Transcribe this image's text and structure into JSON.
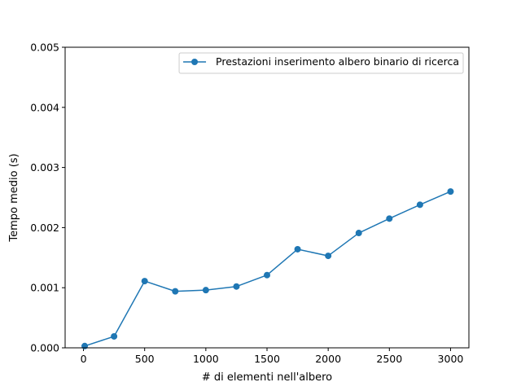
{
  "chart_data": {
    "type": "line",
    "title": "",
    "xlabel": "# di elementi nell'albero",
    "ylabel": "Tempo medio (s)",
    "xlim": [
      -150,
      3150
    ],
    "ylim": [
      0,
      0.005
    ],
    "x_ticks": [
      0,
      500,
      1000,
      1500,
      2000,
      2500,
      3000
    ],
    "x_tick_labels": [
      "0",
      "500",
      "1000",
      "1500",
      "2000",
      "2500",
      "3000"
    ],
    "y_ticks": [
      0,
      0.001,
      0.002,
      0.003,
      0.004,
      0.005
    ],
    "y_tick_labels": [
      "0.000",
      "0.001",
      "0.002",
      "0.003",
      "0.004",
      "0.005"
    ],
    "grid": false,
    "legend_position": "top-right",
    "series": [
      {
        "name": "Prestazioni inserimento albero binario di ricerca",
        "color": "#1f77b4",
        "marker": "circle",
        "x": [
          10,
          250,
          500,
          750,
          1000,
          1250,
          1500,
          1750,
          2000,
          2250,
          2500,
          2750,
          3000
        ],
        "y": [
          3e-05,
          0.00019,
          0.00111,
          0.00094,
          0.00096,
          0.00102,
          0.00121,
          0.00164,
          0.00153,
          0.00191,
          0.00215,
          0.00238,
          0.0026
        ]
      }
    ]
  }
}
